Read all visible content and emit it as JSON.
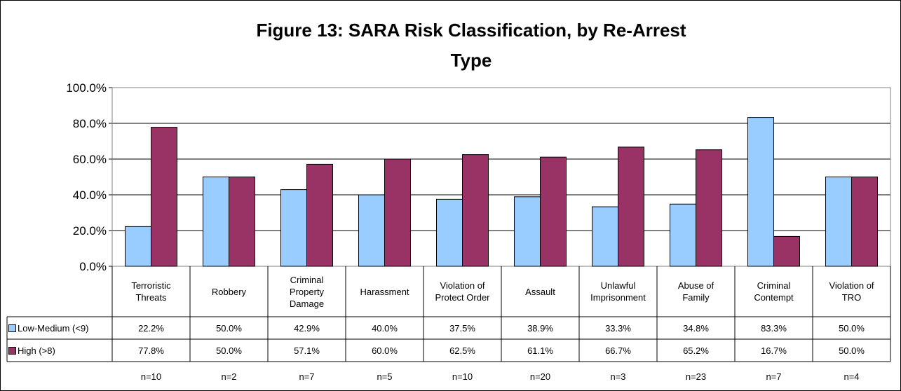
{
  "chart_data": {
    "type": "bar",
    "title": "Figure 13: SARA Risk Classification, by Re-Arrest Type",
    "categories": [
      "Terroristic Threats",
      "Robbery",
      "Criminal Property Damage",
      "Harassment",
      "Violation of Protect Order",
      "Assault",
      "Unlawful Imprisonment",
      "Abuse of Family",
      "Criminal Contempt",
      "Violation of TRO"
    ],
    "series": [
      {
        "name": "Low-Medium (<9)",
        "color": "#99ccff",
        "values": [
          22.2,
          50.0,
          42.9,
          40.0,
          37.5,
          38.9,
          33.3,
          34.8,
          83.3,
          50.0
        ],
        "value_labels": [
          "22.2%",
          "50.0%",
          "42.9%",
          "40.0%",
          "37.5%",
          "38.9%",
          "33.3%",
          "34.8%",
          "83.3%",
          "50.0%"
        ]
      },
      {
        "name": "High (>8)",
        "color": "#993366",
        "values": [
          77.8,
          50.0,
          57.1,
          60.0,
          62.5,
          61.1,
          66.7,
          65.2,
          16.7,
          50.0
        ],
        "value_labels": [
          "77.8%",
          "50.0%",
          "57.1%",
          "60.0%",
          "62.5%",
          "61.1%",
          "66.7%",
          "65.2%",
          "16.7%",
          "50.0%"
        ]
      }
    ],
    "sample_sizes": [
      "n=10",
      "n=2",
      "n=7",
      "n=5",
      "n=10",
      "n=20",
      "n=3",
      "n=23",
      "n=7",
      "n=4"
    ],
    "ylim": [
      0,
      100
    ],
    "yticks": [
      {
        "value": 0,
        "label": "0.0%"
      },
      {
        "value": 20,
        "label": "20.0%"
      },
      {
        "value": 40,
        "label": "40.0%"
      },
      {
        "value": 60,
        "label": "60.0%"
      },
      {
        "value": 80,
        "label": "80.0%"
      },
      {
        "value": 100,
        "label": "100.0%"
      }
    ],
    "grid": true
  }
}
